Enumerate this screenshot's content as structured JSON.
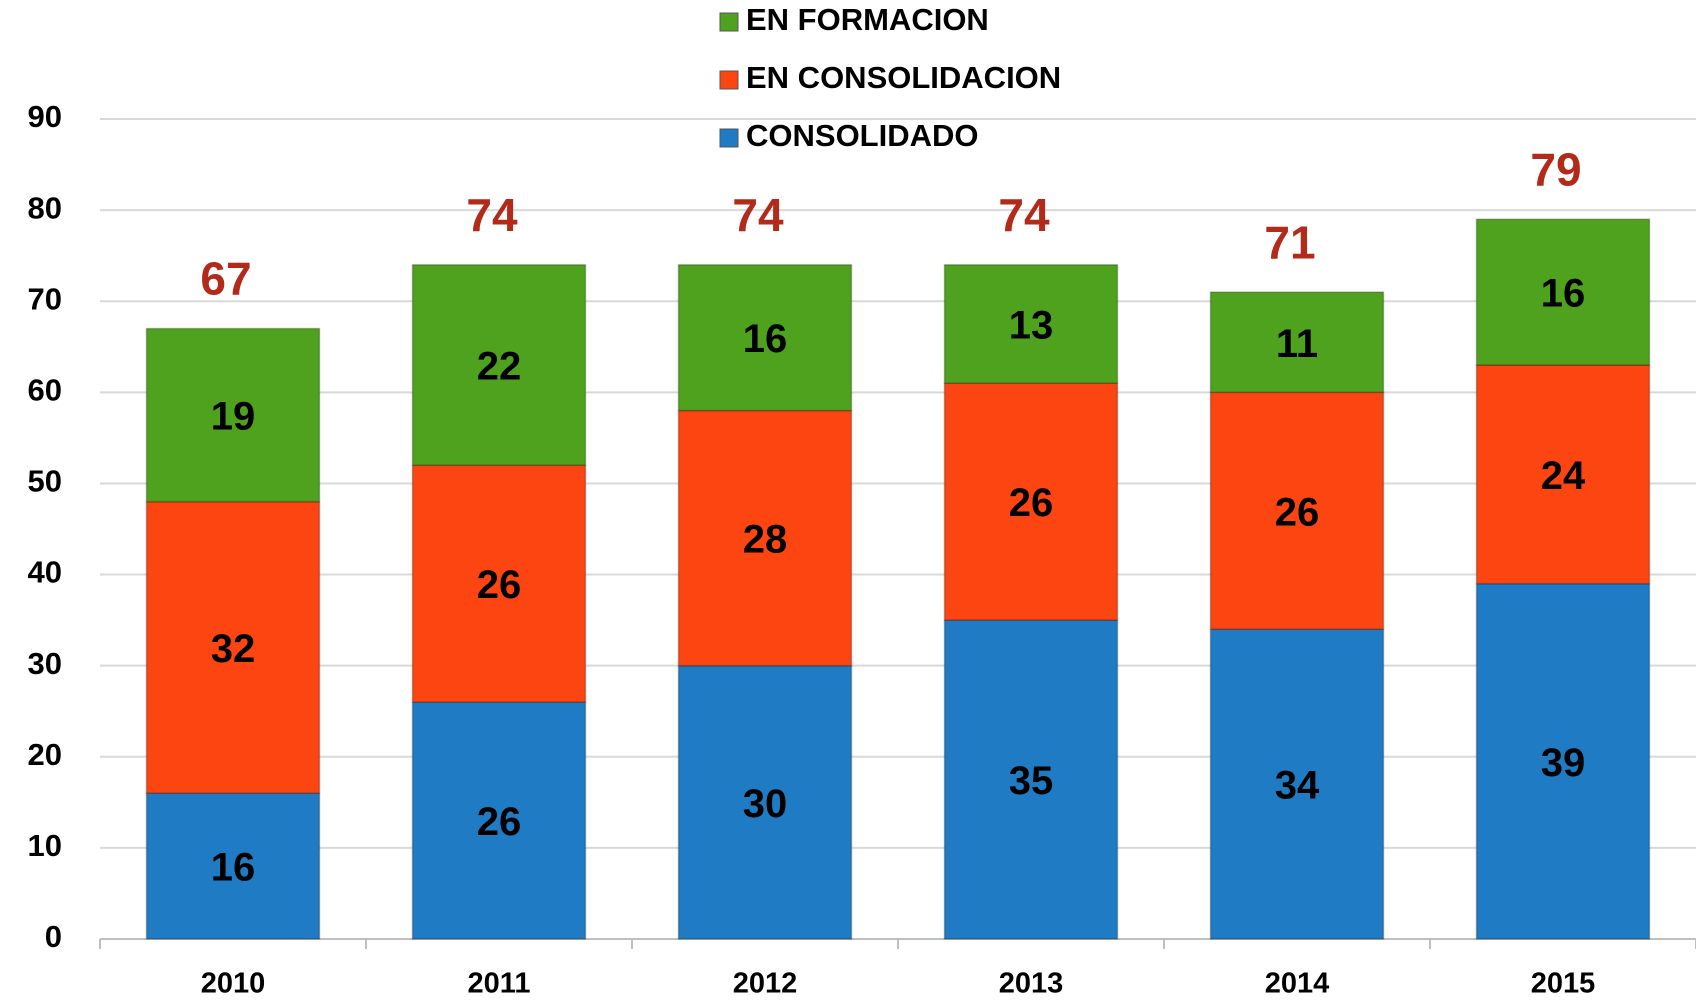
{
  "chart_data": {
    "type": "stacked_bar",
    "categories": [
      "2010",
      "2011",
      "2012",
      "2013",
      "2014",
      "2015"
    ],
    "series": [
      {
        "name": "CONSOLIDADO",
        "color": "#1f7bc4",
        "values": [
          16,
          26,
          30,
          35,
          34,
          39
        ]
      },
      {
        "name": "EN CONSOLIDACION",
        "color": "#fc4510",
        "values": [
          32,
          26,
          28,
          26,
          26,
          24
        ]
      },
      {
        "name": "EN FORMACION",
        "color": "#4ea21e",
        "values": [
          19,
          22,
          16,
          13,
          11,
          16
        ]
      }
    ],
    "totals": [
      67,
      74,
      74,
      74,
      71,
      79
    ],
    "totals_color": "#b22a1a",
    "ylim": [
      0,
      90
    ],
    "yticks": [
      0,
      10,
      20,
      30,
      40,
      50,
      60,
      70,
      80,
      90
    ],
    "grid": true,
    "legend": "top"
  }
}
